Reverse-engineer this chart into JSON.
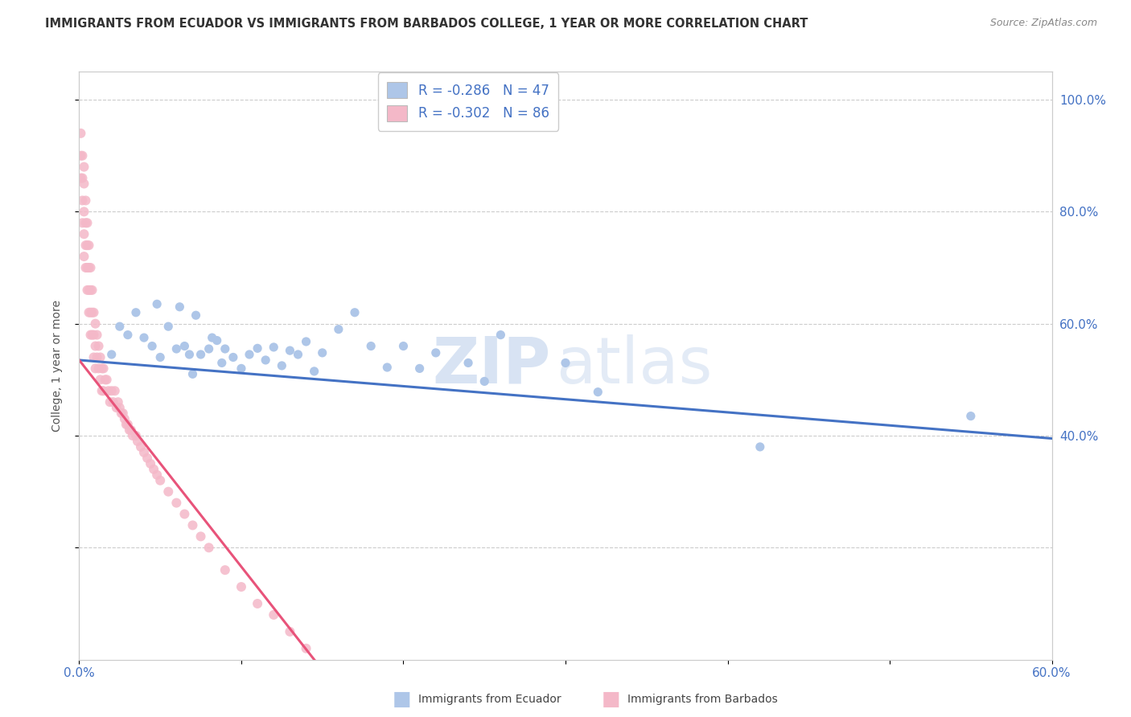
{
  "title": "IMMIGRANTS FROM ECUADOR VS IMMIGRANTS FROM BARBADOS COLLEGE, 1 YEAR OR MORE CORRELATION CHART",
  "source": "Source: ZipAtlas.com",
  "ylabel": "College, 1 year or more",
  "xlim": [
    0.0,
    0.6
  ],
  "ylim": [
    0.0,
    1.05
  ],
  "xticks": [
    0.0,
    0.1,
    0.2,
    0.3,
    0.4,
    0.5,
    0.6
  ],
  "yticks": [
    0.2,
    0.4,
    0.6,
    0.8,
    1.0
  ],
  "xtick_labels": [
    "0.0%",
    "",
    "",
    "",
    "",
    "",
    "60.0%"
  ],
  "ytick_labels_right": [
    "",
    "40.0%",
    "60.0%",
    "80.0%",
    "100.0%"
  ],
  "ecuador_color": "#aec6e8",
  "barbados_color": "#f4b8c8",
  "ecuador_line_color": "#4472c4",
  "barbados_line_color": "#e8537a",
  "watermark_zip": "ZIP",
  "watermark_atlas": "atlas",
  "legend_line1": "R = -0.286   N = 47",
  "legend_line2": "R = -0.302   N = 86",
  "ecuador_scatter_x": [
    0.02,
    0.025,
    0.03,
    0.035,
    0.04,
    0.045,
    0.048,
    0.05,
    0.055,
    0.06,
    0.062,
    0.065,
    0.068,
    0.07,
    0.072,
    0.075,
    0.08,
    0.082,
    0.085,
    0.088,
    0.09,
    0.095,
    0.1,
    0.105,
    0.11,
    0.115,
    0.12,
    0.125,
    0.13,
    0.135,
    0.14,
    0.145,
    0.15,
    0.16,
    0.17,
    0.18,
    0.19,
    0.2,
    0.21,
    0.22,
    0.24,
    0.25,
    0.26,
    0.3,
    0.32,
    0.42,
    0.55
  ],
  "ecuador_scatter_y": [
    0.545,
    0.595,
    0.58,
    0.62,
    0.575,
    0.56,
    0.635,
    0.54,
    0.595,
    0.555,
    0.63,
    0.56,
    0.545,
    0.51,
    0.615,
    0.545,
    0.555,
    0.575,
    0.57,
    0.53,
    0.555,
    0.54,
    0.52,
    0.545,
    0.556,
    0.535,
    0.558,
    0.525,
    0.552,
    0.545,
    0.568,
    0.515,
    0.548,
    0.59,
    0.62,
    0.56,
    0.522,
    0.56,
    0.52,
    0.548,
    0.53,
    0.497,
    0.58,
    0.53,
    0.478,
    0.38,
    0.435
  ],
  "barbados_scatter_x": [
    0.001,
    0.001,
    0.001,
    0.002,
    0.002,
    0.002,
    0.002,
    0.003,
    0.003,
    0.003,
    0.003,
    0.003,
    0.004,
    0.004,
    0.004,
    0.004,
    0.005,
    0.005,
    0.005,
    0.005,
    0.006,
    0.006,
    0.006,
    0.006,
    0.007,
    0.007,
    0.007,
    0.007,
    0.008,
    0.008,
    0.008,
    0.009,
    0.009,
    0.009,
    0.01,
    0.01,
    0.01,
    0.011,
    0.011,
    0.012,
    0.012,
    0.013,
    0.013,
    0.014,
    0.014,
    0.015,
    0.015,
    0.016,
    0.017,
    0.018,
    0.019,
    0.02,
    0.021,
    0.022,
    0.023,
    0.024,
    0.025,
    0.026,
    0.027,
    0.028,
    0.029,
    0.03,
    0.031,
    0.032,
    0.033,
    0.035,
    0.036,
    0.038,
    0.04,
    0.042,
    0.044,
    0.046,
    0.048,
    0.05,
    0.055,
    0.06,
    0.065,
    0.07,
    0.075,
    0.08,
    0.09,
    0.1,
    0.11,
    0.12,
    0.13,
    0.14
  ],
  "barbados_scatter_y": [
    0.94,
    0.9,
    0.86,
    0.9,
    0.86,
    0.82,
    0.78,
    0.88,
    0.85,
    0.8,
    0.76,
    0.72,
    0.82,
    0.78,
    0.74,
    0.7,
    0.78,
    0.74,
    0.7,
    0.66,
    0.74,
    0.7,
    0.66,
    0.62,
    0.7,
    0.66,
    0.62,
    0.58,
    0.66,
    0.62,
    0.58,
    0.62,
    0.58,
    0.54,
    0.6,
    0.56,
    0.52,
    0.58,
    0.54,
    0.56,
    0.52,
    0.54,
    0.5,
    0.52,
    0.48,
    0.52,
    0.48,
    0.5,
    0.5,
    0.48,
    0.46,
    0.48,
    0.46,
    0.48,
    0.45,
    0.46,
    0.45,
    0.44,
    0.44,
    0.43,
    0.42,
    0.42,
    0.41,
    0.41,
    0.4,
    0.4,
    0.39,
    0.38,
    0.37,
    0.36,
    0.35,
    0.34,
    0.33,
    0.32,
    0.3,
    0.28,
    0.26,
    0.24,
    0.22,
    0.2,
    0.16,
    0.13,
    0.1,
    0.08,
    0.05,
    0.02
  ],
  "ecuador_trendline_x": [
    0.0,
    0.6
  ],
  "ecuador_trendline_y": [
    0.535,
    0.395
  ],
  "barbados_trendline_x": [
    0.0,
    0.145
  ],
  "barbados_trendline_y": [
    0.535,
    0.0
  ]
}
